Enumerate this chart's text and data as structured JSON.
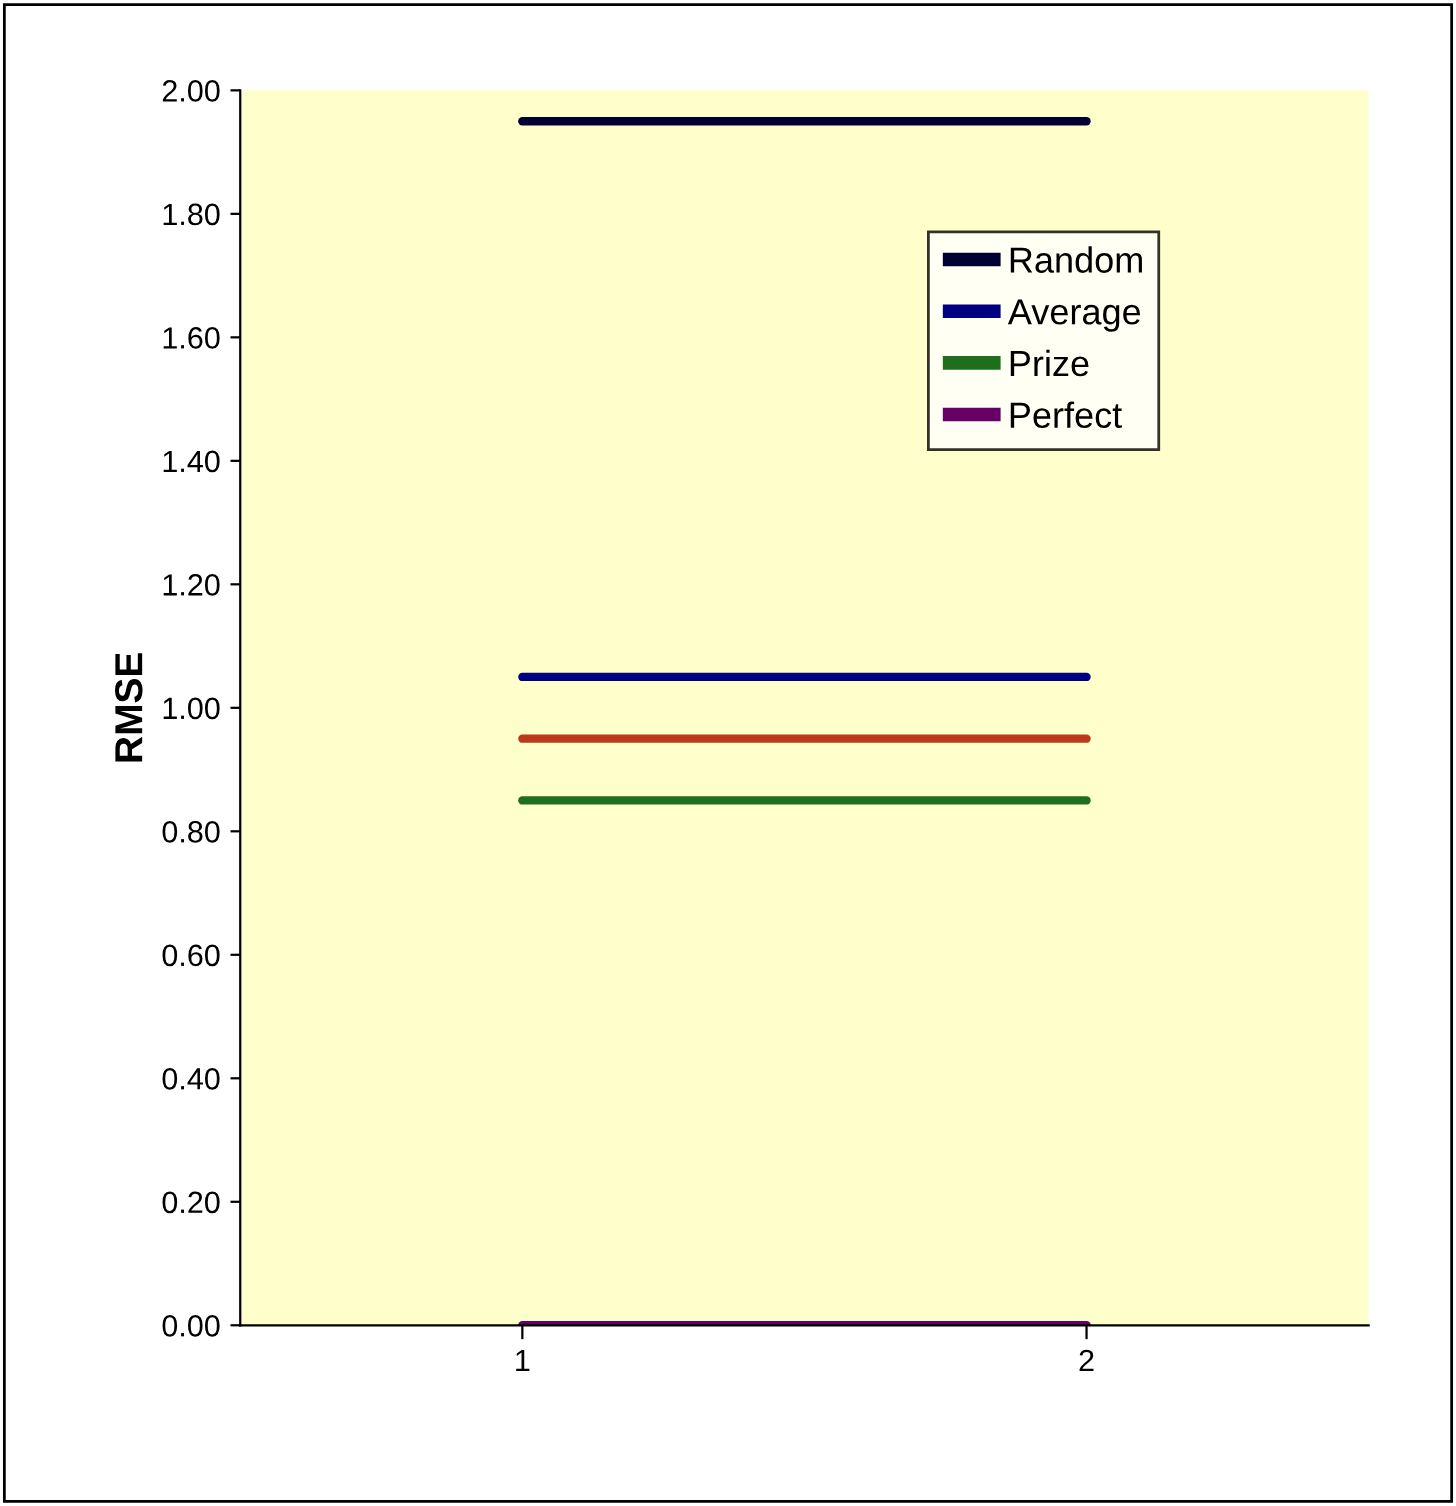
{
  "chart_data": {
    "type": "line",
    "ylabel": "RMSE",
    "categories": [
      "1",
      "2"
    ],
    "series": [
      {
        "name": "Random",
        "color": "#000033",
        "values": [
          1.95,
          1.95
        ]
      },
      {
        "name": "Average",
        "color": "#000080",
        "values": [
          1.05,
          1.05
        ]
      },
      {
        "color": "#b83a1a",
        "values": [
          0.95,
          0.95
        ]
      },
      {
        "name": "Prize",
        "color": "#1e6e1e",
        "values": [
          0.85,
          0.85
        ]
      },
      {
        "name": "Perfect",
        "color": "#660066",
        "values": [
          0.0,
          0.0
        ]
      }
    ],
    "ylim": [
      0,
      2
    ],
    "yticks": [
      {
        "value": 0,
        "label": "0.00"
      },
      {
        "value": 0.2,
        "label": "0.20"
      },
      {
        "value": 0.4,
        "label": "0.40"
      },
      {
        "value": 0.6,
        "label": "0.60"
      },
      {
        "value": 0.8,
        "label": "0.80"
      },
      {
        "value": 1.0,
        "label": "1.00"
      },
      {
        "value": 1.2,
        "label": "1.20"
      },
      {
        "value": 1.4,
        "label": "1.40"
      },
      {
        "value": 1.6,
        "label": "1.60"
      },
      {
        "value": 1.8,
        "label": "1.80"
      },
      {
        "value": 2.0,
        "label": "2.00"
      }
    ],
    "grid": false,
    "legend": "top right",
    "marker": "none",
    "line_style": "solid"
  }
}
